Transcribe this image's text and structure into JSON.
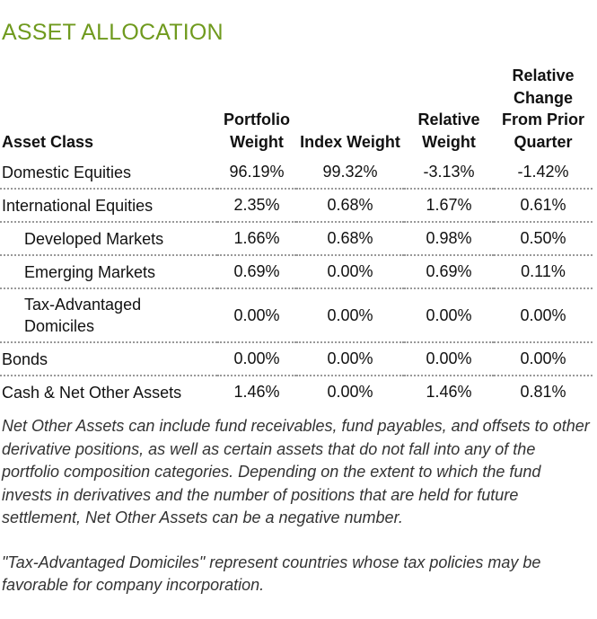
{
  "header": {
    "title": "ASSET ALLOCATION"
  },
  "table": {
    "columns": [
      "Asset Class",
      "Portfolio Weight",
      "Index Weight",
      "Relative Weight",
      "Relative Change From Prior Quarter"
    ],
    "rows": [
      {
        "label": "Domestic Equities",
        "indent": false,
        "cells": [
          "96.19%",
          "99.32%",
          "-3.13%",
          "-1.42%"
        ]
      },
      {
        "label": "International Equities",
        "indent": false,
        "cells": [
          "2.35%",
          "0.68%",
          "1.67%",
          "0.61%"
        ]
      },
      {
        "label": "Developed Markets",
        "indent": true,
        "cells": [
          "1.66%",
          "0.68%",
          "0.98%",
          "0.50%"
        ]
      },
      {
        "label": "Emerging Markets",
        "indent": true,
        "cells": [
          "0.69%",
          "0.00%",
          "0.69%",
          "0.11%"
        ]
      },
      {
        "label": "Tax-Advantaged Domiciles",
        "indent": true,
        "cells": [
          "0.00%",
          "0.00%",
          "0.00%",
          "0.00%"
        ]
      },
      {
        "label": "Bonds",
        "indent": false,
        "cells": [
          "0.00%",
          "0.00%",
          "0.00%",
          "0.00%"
        ]
      },
      {
        "label": "Cash & Net Other Assets",
        "indent": false,
        "cells": [
          "1.46%",
          "0.00%",
          "1.46%",
          "0.81%"
        ]
      }
    ]
  },
  "footnotes": [
    "Net Other Assets can include fund receivables, fund payables, and offsets to other derivative positions, as well as certain assets that do not fall into any of the portfolio composition categories. Depending on the extent to which the fund invests in derivatives and the number of positions that are held for future settlement, Net Other Assets can be a negative number.",
    "\"Tax-Advantaged Domiciles\" represent countries whose tax policies may be favorable for company incorporation."
  ]
}
